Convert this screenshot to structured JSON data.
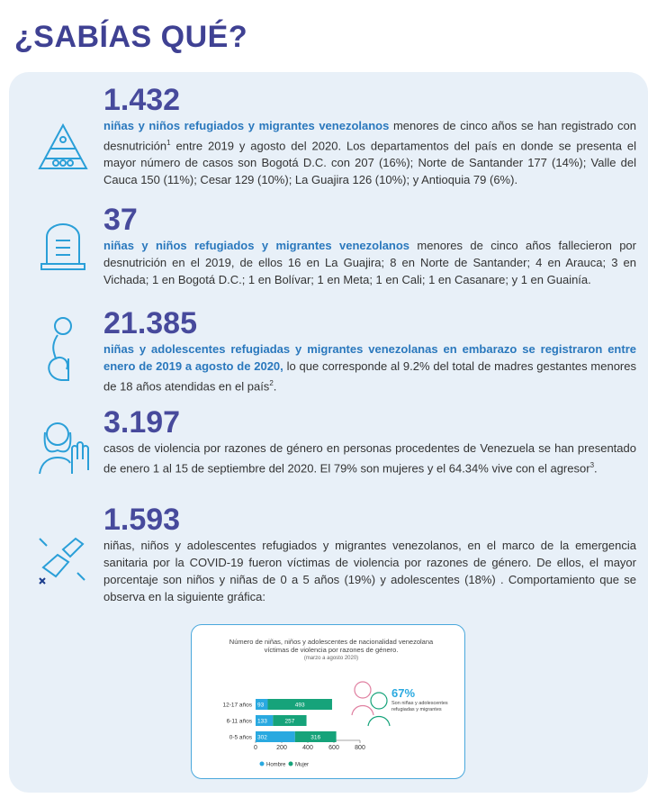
{
  "title": "¿SABÍAS QUÉ?",
  "items": [
    {
      "number": "1.432",
      "lead": "niñas y niños refugiados y migrantes venezolanos",
      "body": [
        {
          "text": " menores de cinco años se han registrado con desnutrición"
        },
        {
          "sup": "1"
        },
        {
          "text": " entre 2019 y agosto del 2020. Los departamentos del país en donde se presenta el mayor número de casos son Bogotá D.C. con 207 (16%); Norte de Santander 177 (14%); Valle del Cauca 150 (11%); Cesar 129 (10%); La Guajira 126 (10%); y Antioquia 79 (6%)."
        }
      ]
    },
    {
      "number": "37",
      "lead": "niñas y niños refugiados y migrantes venezolanos",
      "body": [
        {
          "text": " menores de cinco años fallecieron por desnutrición en el 2019, de ellos 16 en La Guajira; 8 en Norte de Santander; 4 en Arauca; 3 en Vichada; 1 en Bogotá D.C.; 1 en Bolívar; 1 en Meta; 1 en Cali; 1 en Casanare; y 1 en Guainía."
        }
      ]
    },
    {
      "number": "21.385",
      "lead": "niñas y adolescentes refugiadas y migrantes venezolanas en embarazo se registraron entre enero de 2019 a agosto de 2020,",
      "body": [
        {
          "text": " lo que corresponde al 9.2% del total de madres gestantes menores de 18 años atendidas en el país"
        },
        {
          "sup": "2"
        },
        {
          "text": "."
        }
      ]
    },
    {
      "number": "3.197",
      "body": [
        {
          "text": "casos de violencia por razones de género en personas procedentes de Venezuela se han presentado de enero 1 al 15 de septiembre del 2020. El 79% son mujeres y el 64.34% vive con el agresor"
        },
        {
          "sup": "3"
        },
        {
          "text": "."
        }
      ]
    },
    {
      "number": "1.593",
      "body": [
        {
          "text": "niñas, niños y adolescentes refugiados y migrantes venezolanos, en el marco de la emergencia sanitaria por la COVID-19 fueron víctimas de violencia por razones de género. De ellos, el mayor porcentaje son niños y niñas de 0 a 5 años (19%) y adolescentes (18%) . Comportamiento que se observa en la siguiente gráfica:"
        }
      ]
    }
  ],
  "chart_data": {
    "type": "bar",
    "orientation": "horizontal",
    "stacked": true,
    "title": "Número de niñas, niños y adolescentes de nacionalidad venezolana víctimas de violencia por razones de género.",
    "subtitle": "(marzo a agosto 2020)",
    "categories": [
      "12-17 años",
      "6-11 años",
      "0-5 años"
    ],
    "series": [
      {
        "name": "Hombre",
        "color": "#29a9e0",
        "values": [
          93,
          133,
          302
        ]
      },
      {
        "name": "Mujer",
        "color": "#16a37a",
        "values": [
          493,
          257,
          316
        ]
      }
    ],
    "xlim": [
      0,
      800
    ],
    "xticks": [
      0,
      200,
      400,
      600,
      800
    ],
    "annotation": {
      "value": "67%",
      "text": "Son niñas y adolescentes refugiadas y migrantes"
    }
  }
}
